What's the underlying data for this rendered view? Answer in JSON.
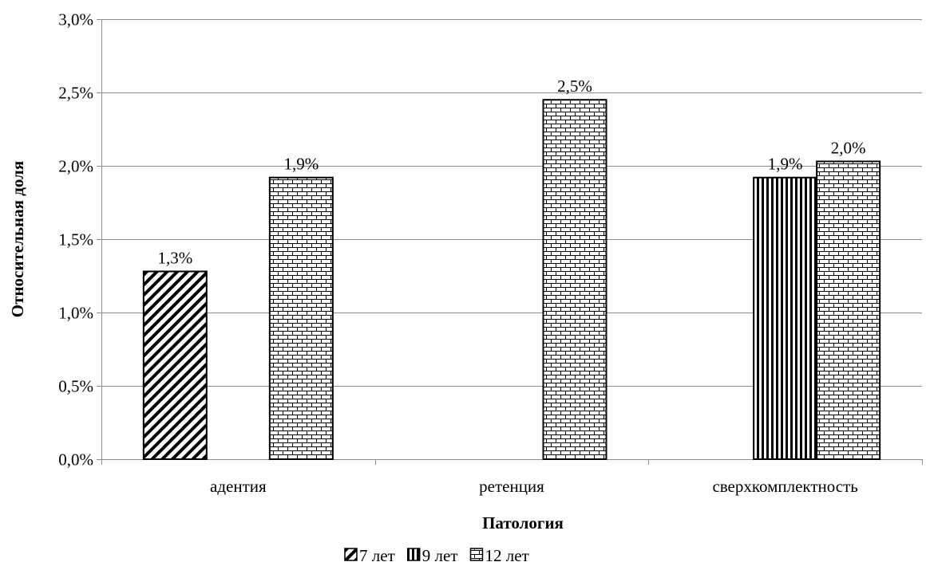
{
  "chart_data": {
    "type": "bar",
    "categories": [
      "адентия",
      "ретенция",
      "сверхкомплектность"
    ],
    "series": [
      {
        "name": "7 лет",
        "pattern": "diagonal",
        "values": [
          1.28,
          null,
          null
        ],
        "labels": [
          "1,3%",
          "",
          ""
        ]
      },
      {
        "name": "9 лет",
        "pattern": "vertical",
        "values": [
          null,
          null,
          1.92
        ],
        "labels": [
          "",
          "",
          "1,9%"
        ]
      },
      {
        "name": "12 лет",
        "pattern": "brick",
        "values": [
          1.92,
          2.45,
          2.03
        ],
        "labels": [
          "1,9%",
          "2,5%",
          "2,0%"
        ]
      }
    ],
    "ylim": [
      0,
      3.0
    ],
    "yticks": [
      0,
      0.5,
      1.0,
      1.5,
      2.0,
      2.5,
      3.0
    ],
    "ytick_labels": [
      "0,0%",
      "0,5%",
      "1,0%",
      "1,5%",
      "2,0%",
      "2,5%",
      "3,0%"
    ],
    "xlabel": "Патология",
    "ylabel": "Относительная доля",
    "grid": true,
    "legend_position": "bottom",
    "colors": {
      "bar_fill": "#ffffff",
      "bar_stroke": "#000000",
      "grid": "#8c8c8c",
      "axis": "#8c8c8c"
    }
  }
}
